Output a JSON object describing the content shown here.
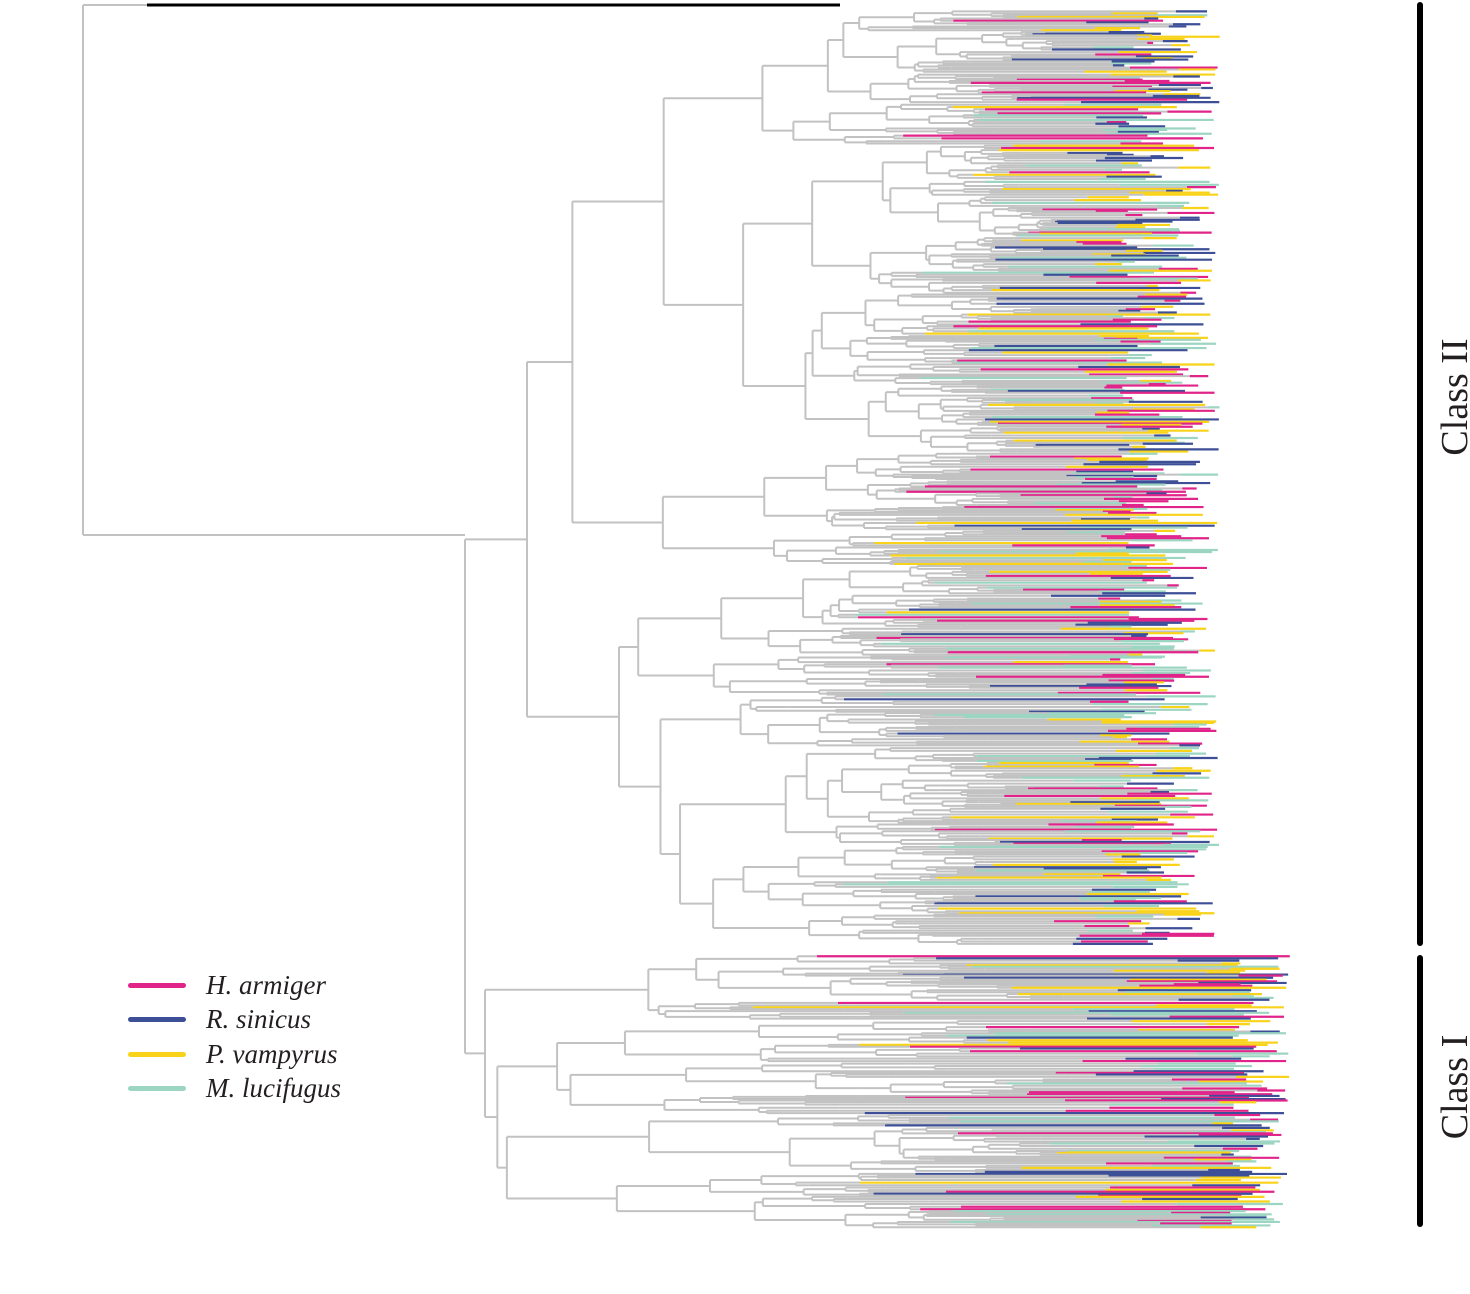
{
  "colors": {
    "branch": "#c2c2c2",
    "outgroup": "#000000"
  },
  "legend": [
    {
      "label": "H. armiger",
      "color": "#e0248a"
    },
    {
      "label": "R. sinicus",
      "color": "#3d4f96"
    },
    {
      "label": "P. vampyrus",
      "color": "#f8d31a"
    },
    {
      "label": "M. lucifugus",
      "color": "#9dd5c3"
    }
  ],
  "clades": [
    {
      "label": "Class II"
    },
    {
      "label": "Class I"
    }
  ]
}
